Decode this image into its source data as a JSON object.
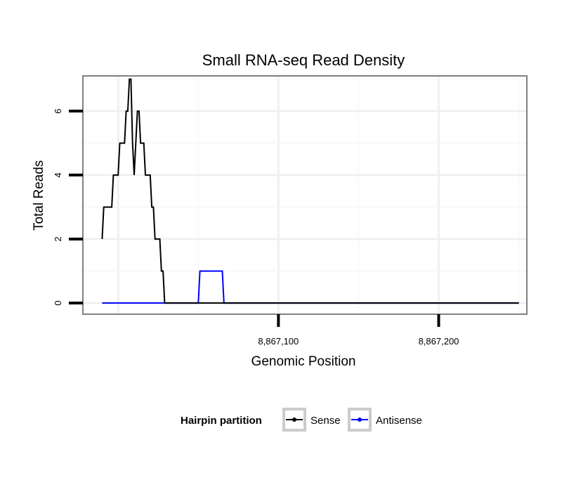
{
  "chart_data": {
    "type": "line",
    "title": "Small RNA-seq Read Density",
    "xlabel": "Genomic Position",
    "ylabel": "Total Reads",
    "xlim": [
      8866978,
      8867255
    ],
    "ylim": [
      -0.35,
      7.1
    ],
    "x_ticks": [
      {
        "value": 8867100,
        "label": "8,867,100"
      },
      {
        "value": 8867200,
        "label": "8,867,200"
      }
    ],
    "y_ticks": [
      {
        "value": 0,
        "label": "0"
      },
      {
        "value": 2,
        "label": "2"
      },
      {
        "value": 4,
        "label": "4"
      },
      {
        "value": 6,
        "label": "6"
      }
    ],
    "grid": true,
    "legend": {
      "title": "Hairpin partition",
      "position": "bottom",
      "entries": [
        "Sense",
        "Antisense"
      ]
    },
    "series": [
      {
        "name": "Sense",
        "color": "#000000",
        "x": [
          8866990,
          8866991,
          8866994,
          8866995,
          8866996,
          8866997,
          8866998,
          8866999,
          8867000,
          8867001,
          8867002,
          8867003,
          8867004,
          8867005,
          8867006,
          8867007,
          8867008,
          8867009,
          8867010,
          8867011,
          8867012,
          8867013,
          8867014,
          8867015,
          8867016,
          8867017,
          8867018,
          8867019,
          8867020,
          8867021,
          8867022,
          8867023,
          8867024,
          8867025,
          8867026,
          8867027,
          8867028,
          8867029,
          8867030,
          8867031,
          8867032,
          8867033,
          8867034,
          8867035,
          8867036,
          8867037,
          8867038,
          8867039,
          8867040,
          8867250
        ],
        "values": [
          2,
          3,
          3,
          3,
          3,
          4,
          4,
          4,
          4,
          5,
          5,
          5,
          5,
          6,
          6,
          7,
          7,
          5,
          4,
          5,
          6,
          6,
          5,
          5,
          5,
          4,
          4,
          4,
          4,
          3,
          3,
          2,
          2,
          2,
          2,
          1,
          1,
          0,
          0,
          0,
          0,
          0,
          0,
          0,
          0,
          0,
          0,
          0,
          0,
          0
        ]
      },
      {
        "name": "Antisense",
        "color": "#0000ff",
        "x": [
          8866990,
          8867044,
          8867050,
          8867051,
          8867052,
          8867064,
          8867065,
          8867066,
          8867250
        ],
        "values": [
          0,
          0,
          0,
          1,
          1,
          1,
          1,
          0,
          0
        ]
      }
    ]
  }
}
